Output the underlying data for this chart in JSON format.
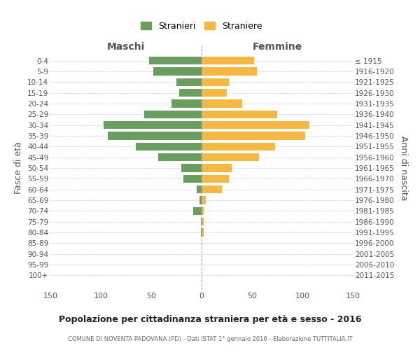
{
  "age_groups": [
    "0-4",
    "5-9",
    "10-14",
    "15-19",
    "20-24",
    "25-29",
    "30-34",
    "35-39",
    "40-44",
    "45-49",
    "50-54",
    "55-59",
    "60-64",
    "65-69",
    "70-74",
    "75-79",
    "80-84",
    "85-89",
    "90-94",
    "95-99",
    "100+"
  ],
  "birth_years": [
    "2011-2015",
    "2006-2010",
    "2001-2005",
    "1996-2000",
    "1991-1995",
    "1986-1990",
    "1981-1985",
    "1976-1980",
    "1971-1975",
    "1966-1970",
    "1961-1965",
    "1956-1960",
    "1951-1955",
    "1946-1950",
    "1941-1945",
    "1936-1940",
    "1931-1935",
    "1926-1930",
    "1921-1925",
    "1916-1920",
    "≤ 1915"
  ],
  "males": [
    52,
    48,
    25,
    22,
    30,
    57,
    97,
    93,
    65,
    43,
    20,
    18,
    5,
    2,
    8,
    1,
    1,
    0,
    0,
    0,
    0
  ],
  "females": [
    52,
    55,
    27,
    25,
    40,
    75,
    107,
    103,
    73,
    57,
    30,
    27,
    20,
    4,
    2,
    2,
    2,
    0,
    0,
    0,
    0
  ],
  "male_color": "#6a9e5f",
  "female_color": "#f5b840",
  "background_color": "#ffffff",
  "grid_color": "#cccccc",
  "title": "Popolazione per cittadinanza straniera per età e sesso - 2016",
  "subtitle": "COMUNE DI NOVENTA PADOVANA (PD) - Dati ISTAT 1° gennaio 2016 - Elaborazione TUTTITALIA.IT",
  "xlabel_left": "Maschi",
  "xlabel_right": "Femmine",
  "ylabel_left": "Fasce di età",
  "ylabel_right": "Anni di nascita",
  "legend_male": "Stranieri",
  "legend_female": "Straniere",
  "xlim": 150
}
